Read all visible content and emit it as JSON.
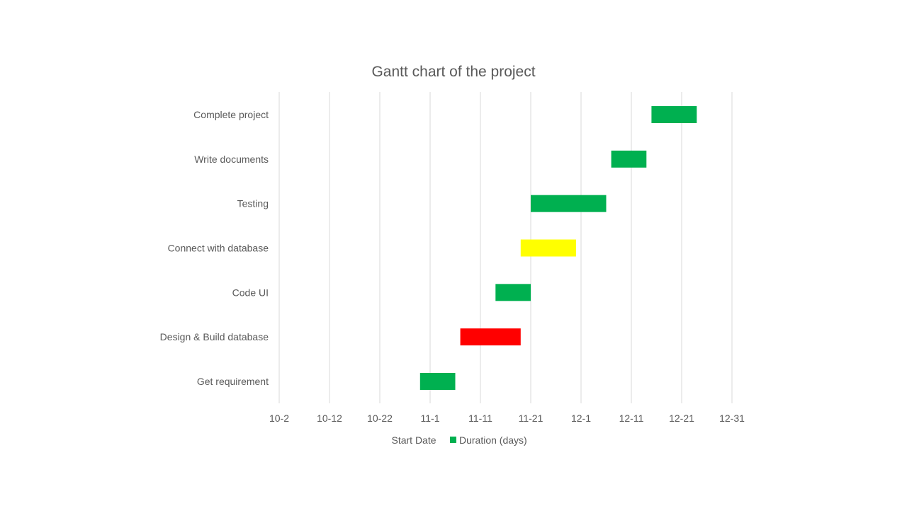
{
  "chart_data": {
    "type": "bar",
    "orientation": "horizontal",
    "title": "Gantt chart of the project",
    "xlabel": "",
    "ylabel": "",
    "x_axis": {
      "type": "date",
      "range": [
        "10-2",
        "12-31"
      ],
      "ticks": [
        "10-2",
        "10-12",
        "10-22",
        "11-1",
        "11-11",
        "11-21",
        "12-1",
        "12-11",
        "12-21",
        "12-31"
      ]
    },
    "grid": "vertical",
    "legend": {
      "position": "bottom",
      "entries": [
        {
          "name": "Start Date",
          "color": "none"
        },
        {
          "name": "Duration (days)",
          "color": "#00b050"
        }
      ]
    },
    "tasks": [
      {
        "name": "Get requirement",
        "start": "10-30",
        "end": "11-6",
        "duration": 7,
        "color": "#00b050"
      },
      {
        "name": "Design & Build database",
        "start": "11-7",
        "end": "11-19",
        "duration": 12,
        "color": "#ff0000"
      },
      {
        "name": "Code UI",
        "start": "11-14",
        "end": "11-21",
        "duration": 7,
        "color": "#00b050"
      },
      {
        "name": "Connect with database",
        "start": "11-19",
        "end": "11-30",
        "duration": 11,
        "color": "#ffff00"
      },
      {
        "name": "Testing",
        "start": "11-21",
        "end": "12-6",
        "duration": 15,
        "color": "#00b050"
      },
      {
        "name": "Write documents",
        "start": "12-7",
        "end": "12-14",
        "duration": 7,
        "color": "#00b050"
      },
      {
        "name": "Complete project",
        "start": "12-15",
        "end": "12-24",
        "duration": 9,
        "color": "#00b050"
      }
    ]
  }
}
